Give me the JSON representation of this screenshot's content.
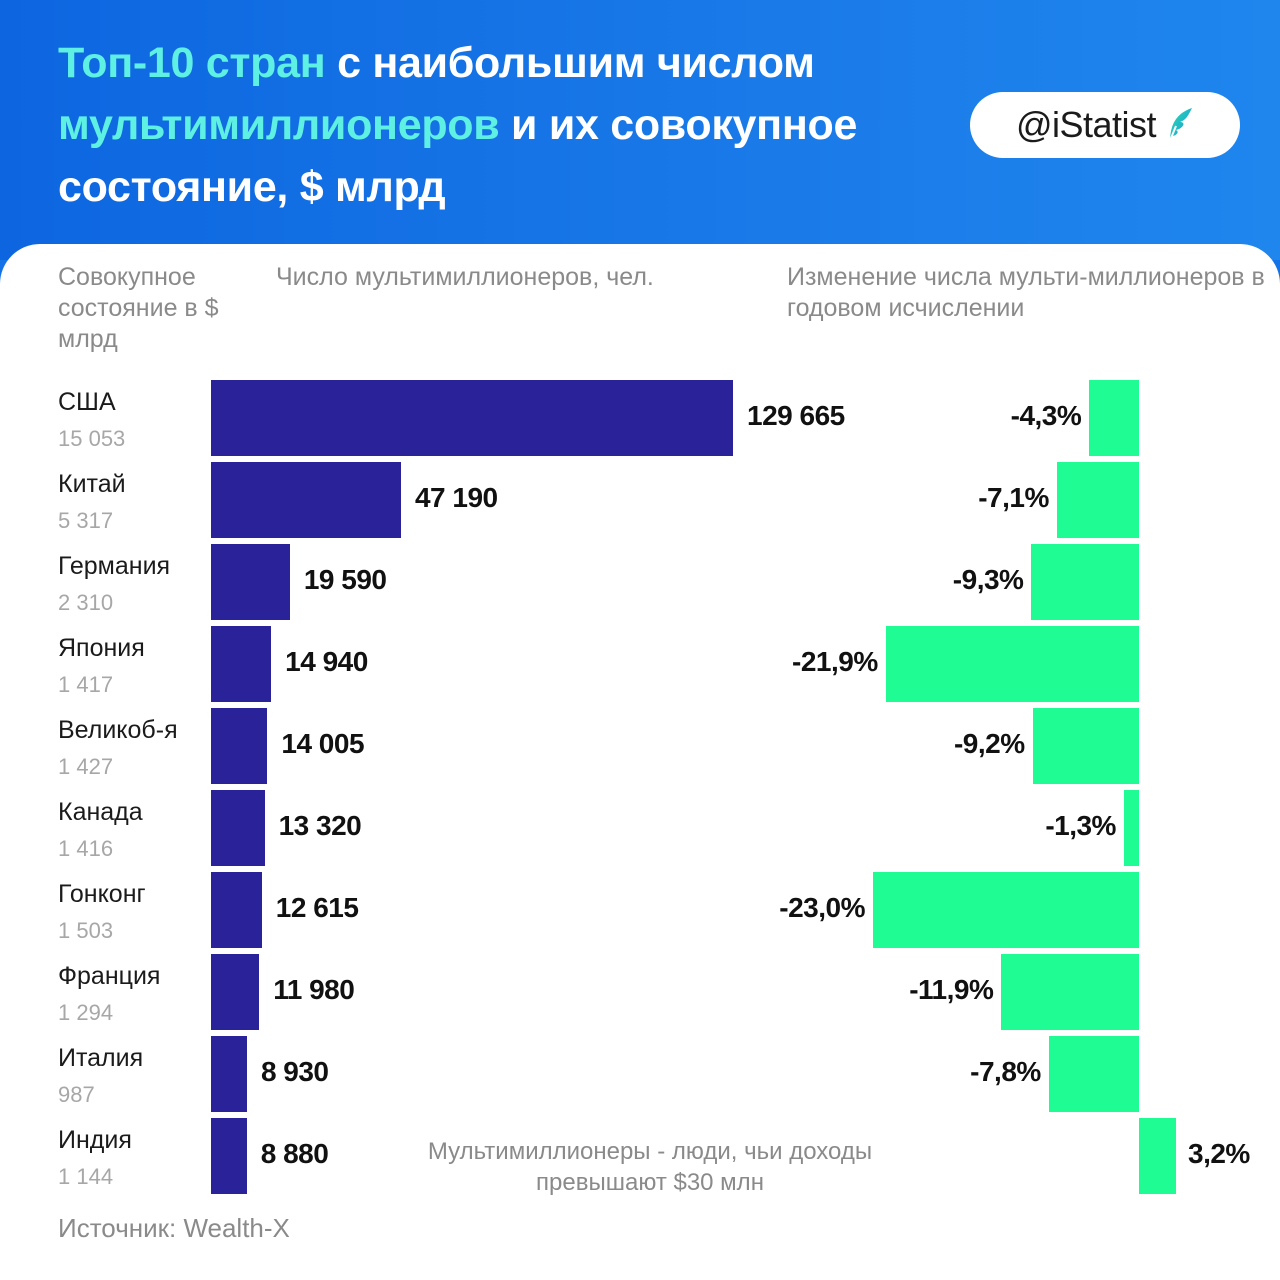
{
  "header": {
    "title_part1_highlight": "Топ-10 стран",
    "title_part2": " с наибольшим числом ",
    "title_part3_highlight": "мультимиллионеров",
    "title_part4": " и их совокупное состояние, $ млрд",
    "logo_text": "@iStatist",
    "colors": {
      "background": "#1473e6",
      "highlight": "#5ff0e4",
      "title": "#ffffff"
    }
  },
  "columns": {
    "wealth_header": "Совокупное состояние в $ млрд",
    "count_header": "Число мультимиллионеров, чел.",
    "change_header": "Изменение числа мульти-миллионеров в годовом исчислении"
  },
  "note": "Мультимиллионеры - люди, чьи доходы превышают $30 млн",
  "source": "Источник: Wealth-X",
  "chart_data": {
    "type": "bar",
    "categories": [
      "США",
      "Китай",
      "Германия",
      "Япония",
      "Великоб-я",
      "Канада",
      "Гонконг",
      "Франция",
      "Италия",
      "Индия"
    ],
    "wealth": [
      "15 053",
      "5 317",
      "2 310",
      "1 417",
      "1 427",
      "1 416",
      "1 503",
      "1 294",
      "987",
      "1 144"
    ],
    "series": [
      {
        "name": "Число мультимиллионеров, чел.",
        "values": [
          129665,
          47190,
          19590,
          14940,
          14005,
          13320,
          12615,
          11980,
          8930,
          8880
        ],
        "labels": [
          "129 665",
          "47 190",
          "19 590",
          "14 940",
          "14 005",
          "13 320",
          "12 615",
          "11 980",
          "8 930",
          "8 880"
        ],
        "color": "#2a2298"
      },
      {
        "name": "Изменение числа мульти-миллионеров в годовом исчислении",
        "values": [
          -4.3,
          -7.1,
          -9.3,
          -21.9,
          -9.2,
          -1.3,
          -23.0,
          -11.9,
          -7.8,
          3.2
        ],
        "labels": [
          "-4,3%",
          "-7,1%",
          "-9,3%",
          "-21,9%",
          "-9,2%",
          "-1,3%",
          "-23,0%",
          "-11,9%",
          "-7,8%",
          "3,2%"
        ],
        "color": "#1ffc94"
      }
    ]
  }
}
